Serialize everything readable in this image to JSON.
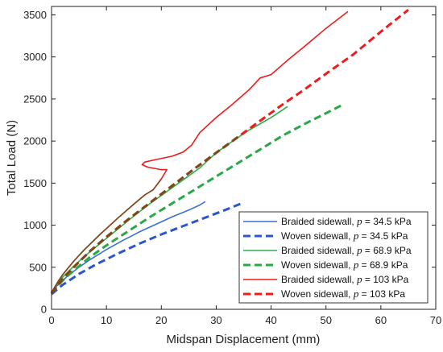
{
  "chart_data": {
    "type": "line",
    "xlabel": "Midspan Displacement  (mm)",
    "ylabel": "Total Load (N)",
    "xlim": [
      0,
      70
    ],
    "ylim": [
      0,
      3600
    ],
    "xticks": [
      0,
      10,
      20,
      30,
      40,
      50,
      60,
      70
    ],
    "yticks": [
      0,
      500,
      1000,
      1500,
      2000,
      2500,
      3000,
      3500
    ],
    "xtick_labels": [
      "0",
      "10",
      "20",
      "30",
      "40",
      "50",
      "60",
      "70"
    ],
    "ytick_labels": [
      "0",
      "500",
      "1000",
      "1500",
      "2000",
      "2500",
      "3000",
      "3500"
    ],
    "grid": false,
    "legend_position": "bottom-right",
    "series": [
      {
        "name": "Braided sidewall, p = 34.5 kPa",
        "legend_prefix": "Braided sidewall, ",
        "legend_var": "p",
        "legend_suffix": " = 34.5 kPa",
        "color": "#3a6fd8",
        "style": "solid",
        "x": [
          0,
          1,
          2,
          3,
          5,
          7,
          10,
          13,
          16,
          19,
          22,
          25,
          27,
          28
        ],
        "y": [
          200,
          280,
          340,
          400,
          500,
          590,
          710,
          820,
          920,
          1010,
          1100,
          1180,
          1240,
          1280
        ]
      },
      {
        "name": "Woven sidewall, p = 34.5 kPa",
        "legend_prefix": "Woven sidewall, ",
        "legend_var": "p",
        "legend_suffix": " = 34.5 kPa",
        "color": "#2f56c9",
        "style": "dashed",
        "x": [
          0,
          2,
          5,
          8,
          12,
          16,
          20,
          24,
          28,
          32,
          35
        ],
        "y": [
          180,
          290,
          420,
          530,
          660,
          780,
          890,
          990,
          1090,
          1190,
          1270
        ]
      },
      {
        "name": "Braided sidewall, p = 68.9 kPa",
        "legend_prefix": "Braided sidewall, ",
        "legend_var": "p",
        "legend_suffix": " = 68.9 kPa",
        "color": "#2db04a",
        "style": "solid",
        "x": [
          0,
          1,
          2,
          4,
          6,
          9,
          12,
          15,
          18,
          21,
          24,
          27,
          30,
          33,
          36,
          40,
          43
        ],
        "y": [
          200,
          300,
          380,
          510,
          630,
          790,
          950,
          1110,
          1260,
          1400,
          1540,
          1680,
          1860,
          2000,
          2130,
          2280,
          2410
        ]
      },
      {
        "name": "Woven sidewall, p = 68.9 kPa",
        "legend_prefix": "Woven sidewall, ",
        "legend_var": "p",
        "legend_suffix": " = 68.9 kPa",
        "color": "#2aa845",
        "style": "dashed",
        "x": [
          0,
          2,
          4,
          7,
          10,
          14,
          18,
          22,
          26,
          30,
          34,
          38,
          42,
          46,
          50,
          53
        ],
        "y": [
          200,
          340,
          460,
          620,
          760,
          930,
          1100,
          1260,
          1420,
          1580,
          1740,
          1900,
          2060,
          2200,
          2330,
          2430
        ]
      },
      {
        "name": "Braided sidewall, p = 103 kPa",
        "legend_prefix": "Braided sidewall, ",
        "legend_var": "p",
        "legend_suffix": " = 103 kPa",
        "color": "#ee1c1c",
        "color_early": "#7a4a1a",
        "style": "solid",
        "x": [
          0,
          1,
          2,
          4,
          6,
          9,
          12,
          15,
          17,
          18.5,
          20,
          21,
          20,
          17.5,
          16.5,
          17,
          19,
          22,
          24,
          25.5,
          27,
          30,
          33,
          36,
          38,
          40,
          43,
          46,
          50,
          54
        ],
        "y": [
          200,
          310,
          410,
          570,
          710,
          900,
          1080,
          1250,
          1360,
          1420,
          1550,
          1660,
          1660,
          1690,
          1720,
          1750,
          1780,
          1820,
          1870,
          1950,
          2100,
          2280,
          2440,
          2610,
          2750,
          2790,
          2960,
          3120,
          3340,
          3540
        ]
      },
      {
        "name": "Woven sidewall, p = 103 kPa",
        "legend_prefix": "Woven sidewall, ",
        "legend_var": "p",
        "legend_suffix": " = 103 kPa",
        "color": "#ee1c1c",
        "color_early": "#7a4a1a",
        "style": "dashed",
        "x": [
          0,
          2,
          4,
          7,
          10,
          14,
          18,
          22,
          26,
          30,
          34,
          38,
          42,
          46,
          50,
          55,
          60,
          65
        ],
        "y": [
          190,
          360,
          500,
          690,
          860,
          1070,
          1270,
          1470,
          1670,
          1860,
          2050,
          2240,
          2430,
          2610,
          2800,
          3030,
          3300,
          3560
        ]
      }
    ]
  }
}
